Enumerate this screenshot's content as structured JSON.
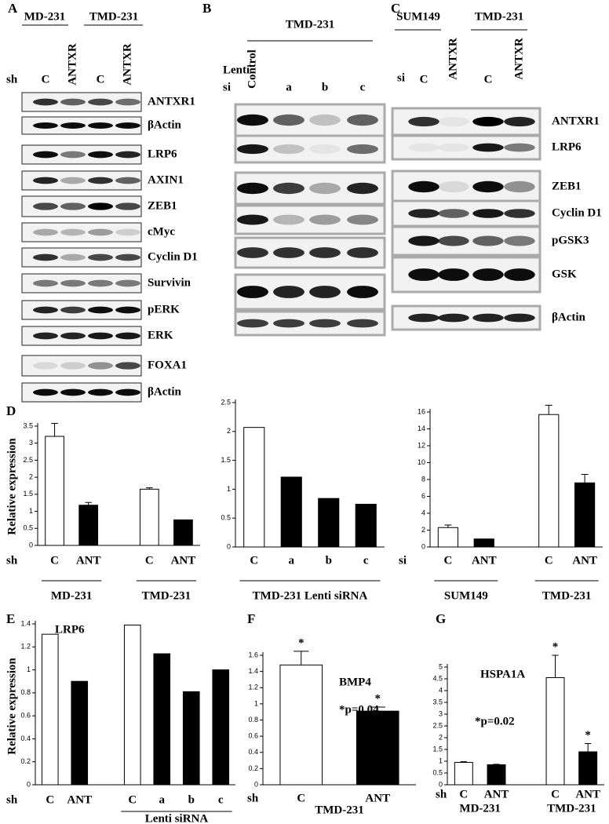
{
  "blots": [
    {
      "letter": "A",
      "groups": [
        "MD-231",
        "TMD-231"
      ],
      "prefix": "sh",
      "lanes": [
        "C",
        "ANTXR",
        "C",
        "ANTXR"
      ],
      "rows": [
        "ANTXR1",
        "βActin",
        "LRP6",
        "AXIN1",
        "ZEB1",
        "cMyc",
        "Cyclin D1",
        "Survivin",
        "pERK",
        "ERK",
        "FOXA1",
        "βActin"
      ]
    },
    {
      "letter": "B",
      "groups": [
        "TMD-231"
      ],
      "prefix": [
        "Lenti",
        "si"
      ],
      "lanes": [
        "Control",
        "a",
        "b",
        "c"
      ]
    },
    {
      "letter": "C",
      "groups": [
        "SUM149",
        "TMD-231"
      ],
      "prefix": "si",
      "lanes": [
        "C",
        "ANTXR",
        "C",
        "ANTXR"
      ],
      "rows": [
        "ANTXR1",
        "LRP6",
        "ZEB1",
        "Cyclin D1",
        "pGSK3",
        "GSK",
        "βActin"
      ]
    }
  ],
  "chart_data": [
    {
      "type": "bar",
      "panel": "D",
      "ylabel": "Relative expression",
      "prefix": "sh",
      "categories": [
        "C",
        "ANT",
        "C",
        "ANT"
      ],
      "values": [
        3.2,
        1.18,
        1.65,
        0.75
      ],
      "errors": [
        0.38,
        0.08,
        0.04,
        null
      ],
      "colors": [
        "#ffffff",
        "#000000",
        "#ffffff",
        "#000000"
      ],
      "ylim": [
        0,
        3.5
      ],
      "yticks": [
        0,
        0.5,
        1,
        1.5,
        2,
        2.5,
        3,
        3.5
      ],
      "groups": [
        {
          "label": "MD-231",
          "span": [
            0,
            1
          ]
        },
        {
          "label": "TMD-231",
          "span": [
            2,
            3
          ]
        }
      ]
    },
    {
      "type": "bar",
      "categories": [
        "C",
        "a",
        "b",
        "c"
      ],
      "values": [
        2.07,
        1.21,
        0.84,
        0.74
      ],
      "colors": [
        "#ffffff",
        "#000000",
        "#000000",
        "#000000"
      ],
      "ylim": [
        0,
        2.5
      ],
      "yticks": [
        0,
        0.5,
        1,
        1.5,
        2,
        2.5
      ],
      "groups": [
        {
          "label": "TMD-231 Lenti siRNA",
          "span": [
            0,
            3
          ]
        }
      ]
    },
    {
      "type": "bar",
      "prefix": "si",
      "categories": [
        "C",
        "ANT",
        "C",
        "ANT"
      ],
      "values": [
        2.3,
        0.95,
        15.7,
        7.6
      ],
      "errors": [
        0.3,
        null,
        1.1,
        1.0
      ],
      "colors": [
        "#ffffff",
        "#000000",
        "#ffffff",
        "#000000"
      ],
      "ylim": [
        0,
        16
      ],
      "yticks": [
        0,
        2,
        4,
        6,
        8,
        10,
        12,
        14,
        16
      ],
      "groups": [
        {
          "label": "SUM149",
          "span": [
            0,
            1
          ]
        },
        {
          "label": "TMD-231",
          "span": [
            2,
            3
          ]
        }
      ]
    },
    {
      "type": "bar",
      "panel": "E",
      "title": "LRP6",
      "ylabel": "Relative expression",
      "prefix": "sh",
      "categories": [
        "C",
        "ANT",
        "C",
        "a",
        "b",
        "c"
      ],
      "values": [
        1.31,
        0.9,
        1.39,
        1.14,
        0.81,
        1.0
      ],
      "colors": [
        "#ffffff",
        "#000000",
        "#ffffff",
        "#000000",
        "#000000",
        "#000000"
      ],
      "ylim": [
        0,
        1.4
      ],
      "yticks": [
        0,
        0.2,
        0.4,
        0.6,
        0.8,
        1,
        1.2,
        1.4
      ],
      "groups": [
        {
          "label": "Lenti siRNA",
          "span": [
            2,
            5
          ]
        }
      ]
    },
    {
      "type": "bar",
      "panel": "F",
      "title": "BMP4",
      "annotation": "*p=0.04",
      "prefix": "sh",
      "categories": [
        "C",
        "ANT"
      ],
      "values": [
        1.48,
        0.91
      ],
      "errors": [
        0.17,
        0.05
      ],
      "markers": [
        "*",
        "*"
      ],
      "colors": [
        "#ffffff",
        "#000000"
      ],
      "ylim": [
        0,
        1.6
      ],
      "yticks": [
        0,
        0.2,
        0.4,
        0.6,
        0.8,
        1,
        1.2,
        1.4,
        1.6
      ],
      "groups": [
        {
          "label": "TMD-231",
          "span": [
            0,
            1
          ]
        }
      ]
    },
    {
      "type": "bar",
      "panel": "G",
      "title": "HSPA1A",
      "annotation": "*p=0.02",
      "prefix": "sh",
      "categories": [
        "C",
        "ANT",
        "C",
        "ANT"
      ],
      "values": [
        0.95,
        0.85,
        4.55,
        1.4
      ],
      "errors": [
        0.03,
        0.02,
        0.95,
        0.35
      ],
      "markers": [
        null,
        null,
        "*",
        "*"
      ],
      "colors": [
        "#ffffff",
        "#000000",
        "#ffffff",
        "#000000"
      ],
      "ylim": [
        0,
        5
      ],
      "yticks": [
        0,
        0.5,
        1,
        1.5,
        2,
        2.5,
        3,
        3.5,
        4,
        4.5,
        5
      ],
      "groups": [
        {
          "label": "MD-231",
          "span": [
            0,
            1
          ]
        },
        {
          "label": "TMD-231",
          "span": [
            2,
            3
          ]
        }
      ]
    }
  ]
}
